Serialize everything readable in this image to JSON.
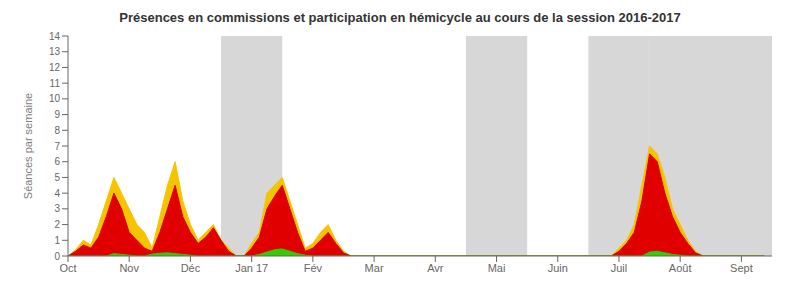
{
  "chart_data": {
    "type": "area",
    "title": "Présences en commissions et participation en hémicycle au cours de la session 2016-2017",
    "ylabel": "Séances par semaine",
    "xlim": [
      0,
      46
    ],
    "ylim": [
      0,
      14
    ],
    "yticks": [
      0,
      1,
      2,
      3,
      4,
      5,
      6,
      7,
      8,
      9,
      10,
      11,
      12,
      13,
      14
    ],
    "xticks": [
      {
        "value": 0,
        "label": "Oct"
      },
      {
        "value": 4,
        "label": "Nov"
      },
      {
        "value": 8,
        "label": "Déc"
      },
      {
        "value": 12,
        "label": "Jan 17"
      },
      {
        "value": 16,
        "label": "Fév"
      },
      {
        "value": 20,
        "label": "Mar"
      },
      {
        "value": 24,
        "label": "Avr"
      },
      {
        "value": 28,
        "label": "Mai"
      },
      {
        "value": 32,
        "label": "Juin"
      },
      {
        "value": 36,
        "label": "Juil"
      },
      {
        "value": 40,
        "label": "Août"
      },
      {
        "value": 44,
        "label": "Sept"
      }
    ],
    "grid": false,
    "bands": {
      "color": "#b0b0b0",
      "ranges": [
        [
          10,
          14
        ],
        [
          26,
          30
        ],
        [
          34,
          38
        ],
        [
          38,
          46
        ]
      ]
    },
    "x": [
      0.0,
      0.5,
      1.0,
      1.5,
      2.0,
      2.5,
      3.0,
      3.5,
      4.0,
      4.5,
      5.0,
      5.5,
      6.0,
      6.5,
      7.0,
      7.5,
      8.0,
      8.5,
      9.0,
      9.5,
      10.0,
      10.5,
      11.0,
      11.5,
      12.0,
      12.5,
      13.0,
      13.5,
      14.0,
      14.5,
      15.0,
      15.5,
      16.0,
      16.5,
      17.0,
      17.5,
      18.0,
      18.5,
      19.0,
      19.5,
      20.0,
      20.5,
      21.0,
      21.5,
      22.0,
      22.5,
      23.0,
      23.5,
      24.0,
      24.5,
      25.0,
      25.5,
      26.0,
      26.5,
      27.0,
      27.5,
      28.0,
      28.5,
      29.0,
      29.5,
      30.0,
      30.5,
      31.0,
      31.5,
      32.0,
      32.5,
      33.0,
      33.5,
      34.0,
      34.5,
      35.0,
      35.5,
      36.0,
      36.5,
      37.0,
      37.5,
      38.0,
      38.5,
      39.0,
      39.5,
      40.0,
      40.5,
      41.0,
      41.5,
      42.0,
      42.5,
      43.0,
      43.5,
      44.0,
      44.5,
      45.0,
      45.5
    ],
    "series": [
      {
        "color": "#f5c400",
        "values": [
          0.0,
          0.4,
          1.0,
          0.7,
          2.0,
          3.5,
          5.0,
          4.0,
          3.0,
          2.0,
          1.5,
          0.5,
          2.5,
          4.5,
          6.0,
          3.5,
          2.0,
          1.0,
          1.5,
          2.0,
          1.0,
          0.5,
          0.0,
          0.0,
          0.8,
          1.5,
          4.0,
          4.5,
          5.0,
          3.5,
          2.0,
          0.5,
          0.8,
          1.5,
          2.0,
          1.0,
          0.3,
          0.0,
          0.0,
          0.0,
          0.0,
          0.0,
          0.0,
          0.0,
          0.0,
          0.0,
          0.0,
          0.0,
          0.0,
          0.0,
          0.0,
          0.0,
          0.0,
          0.0,
          0.0,
          0.0,
          0.0,
          0.0,
          0.0,
          0.0,
          0.0,
          0.0,
          0.0,
          0.0,
          0.0,
          0.0,
          0.0,
          0.0,
          0.0,
          0.0,
          0.0,
          0.0,
          0.5,
          1.0,
          2.0,
          4.5,
          7.0,
          6.5,
          5.0,
          3.0,
          2.0,
          1.0,
          0.3,
          0.0,
          0.0,
          0.0,
          0.0,
          0.0,
          0.0,
          0.0,
          0.0,
          0.0
        ]
      },
      {
        "color": "#e00000",
        "values": [
          0.0,
          0.3,
          0.7,
          0.5,
          1.2,
          2.5,
          4.0,
          3.0,
          1.5,
          1.0,
          0.5,
          0.3,
          1.5,
          3.0,
          4.5,
          2.5,
          1.5,
          0.8,
          1.2,
          1.8,
          1.0,
          0.3,
          0.0,
          0.0,
          0.5,
          1.2,
          3.0,
          3.8,
          4.5,
          3.0,
          1.5,
          0.3,
          0.5,
          1.0,
          1.5,
          0.8,
          0.2,
          0.0,
          0.0,
          0.0,
          0.0,
          0.0,
          0.0,
          0.0,
          0.0,
          0.0,
          0.0,
          0.0,
          0.0,
          0.0,
          0.0,
          0.0,
          0.0,
          0.0,
          0.0,
          0.0,
          0.0,
          0.0,
          0.0,
          0.0,
          0.0,
          0.0,
          0.0,
          0.0,
          0.0,
          0.0,
          0.0,
          0.0,
          0.0,
          0.0,
          0.0,
          0.0,
          0.3,
          0.8,
          1.5,
          3.5,
          6.5,
          6.0,
          4.0,
          2.5,
          1.5,
          0.8,
          0.2,
          0.0,
          0.0,
          0.0,
          0.0,
          0.0,
          0.0,
          0.0,
          0.0,
          0.0
        ]
      },
      {
        "color": "#33cc00",
        "values": [
          0.0,
          0.0,
          0.0,
          0.0,
          0.0,
          0.0,
          0.15,
          0.1,
          0.05,
          0.0,
          0.0,
          0.12,
          0.18,
          0.2,
          0.15,
          0.1,
          0.05,
          0.0,
          0.0,
          0.0,
          0.0,
          0.0,
          0.0,
          0.0,
          0.0,
          0.1,
          0.25,
          0.4,
          0.45,
          0.3,
          0.15,
          0.05,
          0.0,
          0.0,
          0.0,
          0.0,
          0.0,
          0.0,
          0.0,
          0.0,
          0.0,
          0.0,
          0.0,
          0.0,
          0.0,
          0.0,
          0.0,
          0.0,
          0.0,
          0.0,
          0.0,
          0.0,
          0.0,
          0.0,
          0.0,
          0.0,
          0.0,
          0.0,
          0.0,
          0.0,
          0.0,
          0.0,
          0.0,
          0.0,
          0.0,
          0.0,
          0.0,
          0.0,
          0.0,
          0.0,
          0.0,
          0.0,
          0.0,
          0.0,
          0.0,
          0.0,
          0.25,
          0.3,
          0.2,
          0.1,
          0.05,
          0.0,
          0.0,
          0.0,
          0.0,
          0.0,
          0.0,
          0.0,
          0.0,
          0.0,
          0.0,
          0.0
        ]
      }
    ]
  }
}
